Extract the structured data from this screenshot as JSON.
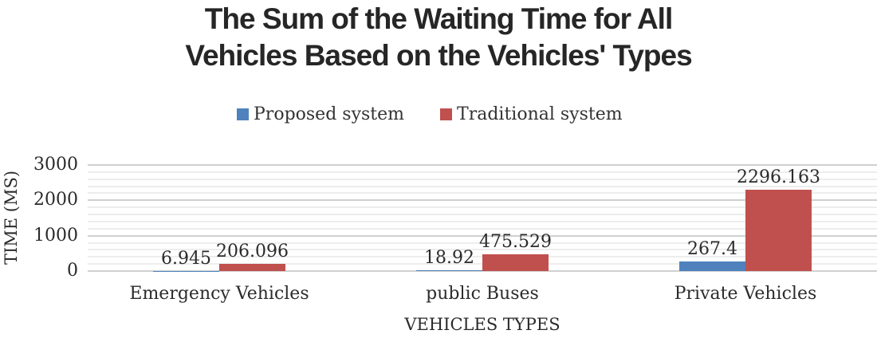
{
  "chart_data": {
    "type": "bar",
    "title": "The Sum of the Waiting Time for All Vehicles Based on the Vehicles' Types",
    "title_lines": [
      "The Sum of the Waiting Time for All",
      "Vehicles Based on the Vehicles' Types"
    ],
    "categories": [
      "Emergency Vehicles",
      "public Buses",
      "Private Vehicles"
    ],
    "series": [
      {
        "name": "Proposed system",
        "color": "#4F81BD",
        "values": [
          6.945,
          18.92,
          267.4
        ],
        "labels": [
          "6.945",
          "18.92",
          "267.4"
        ]
      },
      {
        "name": "Traditional system",
        "color": "#C0504D",
        "values": [
          206.096,
          475.529,
          2296.163
        ],
        "labels": [
          "206.096",
          "475.529",
          "2296.163"
        ]
      }
    ],
    "xlabel": "VEHICLES TYPES",
    "ylabel": "TIME (MS)",
    "ylim": [
      0,
      3000
    ],
    "yticks": [
      0,
      1000,
      2000,
      3000
    ],
    "grid": {
      "horizontal": true,
      "major_unit": 1000,
      "minor_unit": 200,
      "major_color": "#d0d0d0",
      "minor_color": "#ededed"
    },
    "legend_position": "top-center"
  }
}
